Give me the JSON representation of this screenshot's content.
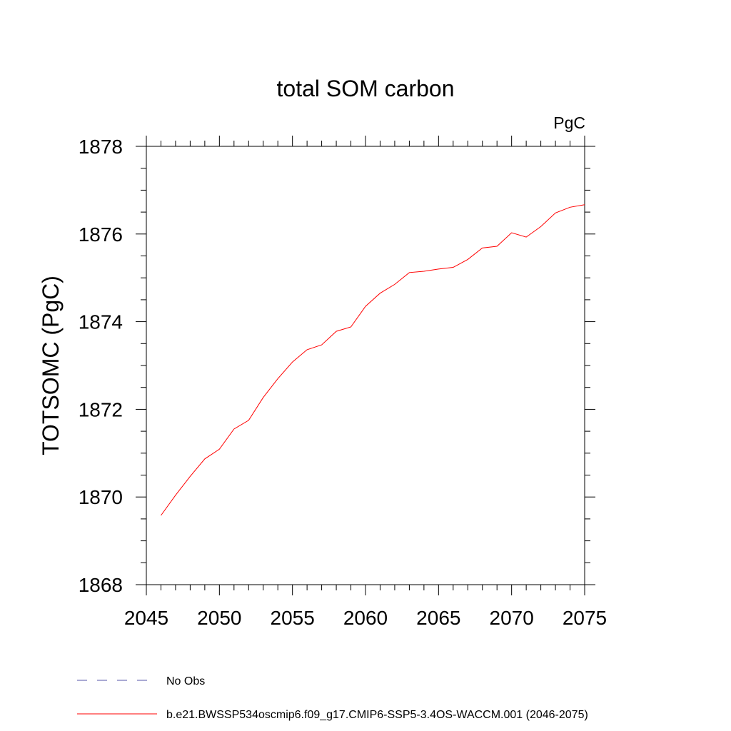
{
  "chart_data": {
    "type": "line",
    "title": "total SOM carbon",
    "units": "PgC",
    "ylabel": "TOTSOMC  (PgC)",
    "xlabel": "",
    "xlim": [
      2045,
      2075
    ],
    "ylim": [
      1868,
      1878
    ],
    "x_ticks": [
      2045,
      2050,
      2055,
      2060,
      2065,
      2070,
      2075
    ],
    "y_ticks": [
      1868,
      1870,
      1872,
      1874,
      1876,
      1878
    ],
    "grid": false,
    "legend_position": "bottom",
    "series": [
      {
        "name": "b.e21.BWSSP534oscmip6.f09_g17.CMIP6-SSP5-3.4OS-WACCM.001 (2046-2075)",
        "color": "#ff0000",
        "style": "solid",
        "x": [
          2046,
          2047,
          2048,
          2049,
          2050,
          2051,
          2052,
          2053,
          2054,
          2055,
          2056,
          2057,
          2058,
          2059,
          2060,
          2061,
          2062,
          2063,
          2064,
          2065,
          2066,
          2067,
          2068,
          2069,
          2070,
          2071,
          2072,
          2073,
          2074,
          2075
        ],
        "values": [
          1869.58,
          1870.04,
          1870.47,
          1870.87,
          1871.09,
          1871.55,
          1871.75,
          1872.27,
          1872.7,
          1873.08,
          1873.36,
          1873.47,
          1873.78,
          1873.88,
          1874.35,
          1874.65,
          1874.85,
          1875.12,
          1875.15,
          1875.2,
          1875.24,
          1875.42,
          1875.68,
          1875.72,
          1876.03,
          1875.93,
          1876.17,
          1876.48,
          1876.61,
          1876.67
        ]
      }
    ],
    "legend": [
      {
        "label": "No Obs",
        "color": "#5555aa",
        "style": "dashed"
      },
      {
        "label": "b.e21.BWSSP534oscmip6.f09_g17.CMIP6-SSP5-3.4OS-WACCM.001 (2046-2075)",
        "color": "#ff0000",
        "style": "solid"
      }
    ]
  }
}
